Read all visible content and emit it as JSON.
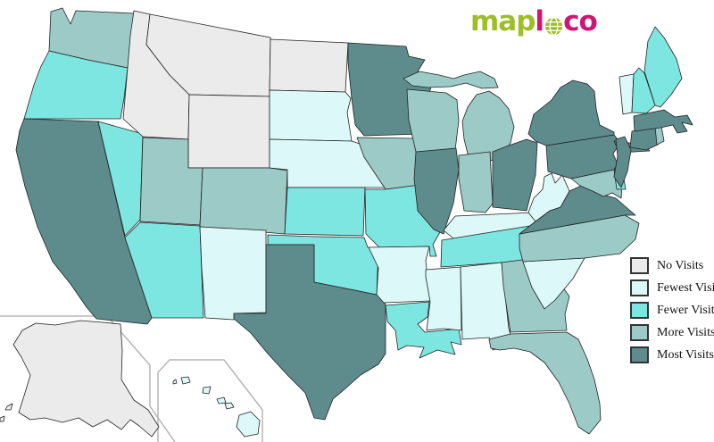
{
  "logo": {
    "part_map": "map",
    "part_l": "l",
    "part_co": "co",
    "globe_icon": "globe-icon",
    "green": "#9cbf27",
    "magenta": "#d11572"
  },
  "legend": {
    "items": [
      {
        "key": "no",
        "label": "No Visits",
        "color": "#ebebeb"
      },
      {
        "key": "fewest",
        "label": "Fewest Visits",
        "color": "#dcf8f8"
      },
      {
        "key": "fewer",
        "label": "Fewer Visits",
        "color": "#7ee6e0"
      },
      {
        "key": "more",
        "label": "More Visits",
        "color": "#9bcac7"
      },
      {
        "key": "most",
        "label": "Most Visits",
        "color": "#5e8b8c"
      }
    ]
  },
  "map": {
    "background": "#ffffff",
    "state_border_color": "#222222",
    "inset_border_color": "#b5b5b5",
    "states": [
      {
        "id": "WA",
        "name": "Washington",
        "category": "more"
      },
      {
        "id": "OR",
        "name": "Oregon",
        "category": "fewer"
      },
      {
        "id": "CA",
        "name": "California",
        "category": "most"
      },
      {
        "id": "NV",
        "name": "Nevada",
        "category": "fewer"
      },
      {
        "id": "ID",
        "name": "Idaho",
        "category": "no"
      },
      {
        "id": "MT",
        "name": "Montana",
        "category": "no"
      },
      {
        "id": "WY",
        "name": "Wyoming",
        "category": "no"
      },
      {
        "id": "UT",
        "name": "Utah",
        "category": "more"
      },
      {
        "id": "CO",
        "name": "Colorado",
        "category": "more"
      },
      {
        "id": "AZ",
        "name": "Arizona",
        "category": "fewer"
      },
      {
        "id": "NM",
        "name": "New Mexico",
        "category": "fewest"
      },
      {
        "id": "ND",
        "name": "North Dakota",
        "category": "no"
      },
      {
        "id": "SD",
        "name": "South Dakota",
        "category": "fewest"
      },
      {
        "id": "NE",
        "name": "Nebraska",
        "category": "fewest"
      },
      {
        "id": "KS",
        "name": "Kansas",
        "category": "fewer"
      },
      {
        "id": "OK",
        "name": "Oklahoma",
        "category": "fewer"
      },
      {
        "id": "TX",
        "name": "Texas",
        "category": "most"
      },
      {
        "id": "MN",
        "name": "Minnesota",
        "category": "most"
      },
      {
        "id": "IA",
        "name": "Iowa",
        "category": "more"
      },
      {
        "id": "MO",
        "name": "Missouri",
        "category": "fewer"
      },
      {
        "id": "AR",
        "name": "Arkansas",
        "category": "fewest"
      },
      {
        "id": "LA",
        "name": "Louisiana",
        "category": "fewer"
      },
      {
        "id": "WI",
        "name": "Wisconsin",
        "category": "more"
      },
      {
        "id": "MI",
        "name": "Michigan",
        "category": "more"
      },
      {
        "id": "IL",
        "name": "Illinois",
        "category": "most"
      },
      {
        "id": "IN",
        "name": "Indiana",
        "category": "more"
      },
      {
        "id": "OH",
        "name": "Ohio",
        "category": "most"
      },
      {
        "id": "KY",
        "name": "Kentucky",
        "category": "fewest"
      },
      {
        "id": "TN",
        "name": "Tennessee",
        "category": "fewer"
      },
      {
        "id": "MS",
        "name": "Mississippi",
        "category": "fewest"
      },
      {
        "id": "AL",
        "name": "Alabama",
        "category": "fewest"
      },
      {
        "id": "GA",
        "name": "Georgia",
        "category": "more"
      },
      {
        "id": "FL",
        "name": "Florida",
        "category": "more"
      },
      {
        "id": "SC",
        "name": "South Carolina",
        "category": "fewest"
      },
      {
        "id": "NC",
        "name": "North Carolina",
        "category": "more"
      },
      {
        "id": "VA",
        "name": "Virginia",
        "category": "most"
      },
      {
        "id": "WV",
        "name": "West Virginia",
        "category": "fewest"
      },
      {
        "id": "MD",
        "name": "Maryland",
        "category": "more"
      },
      {
        "id": "DE",
        "name": "Delaware",
        "category": "fewer"
      },
      {
        "id": "PA",
        "name": "Pennsylvania",
        "category": "most"
      },
      {
        "id": "NY",
        "name": "New York",
        "category": "most"
      },
      {
        "id": "NJ",
        "name": "New Jersey",
        "category": "most"
      },
      {
        "id": "CT",
        "name": "Connecticut",
        "category": "most"
      },
      {
        "id": "RI",
        "name": "Rhode Island",
        "category": "more"
      },
      {
        "id": "MA",
        "name": "Massachusetts",
        "category": "most"
      },
      {
        "id": "VT",
        "name": "Vermont",
        "category": "fewest"
      },
      {
        "id": "NH",
        "name": "New Hampshire",
        "category": "fewer"
      },
      {
        "id": "ME",
        "name": "Maine",
        "category": "fewer"
      },
      {
        "id": "AK",
        "name": "Alaska",
        "category": "no"
      },
      {
        "id": "HI",
        "name": "Hawaii",
        "category": "fewest"
      }
    ]
  }
}
